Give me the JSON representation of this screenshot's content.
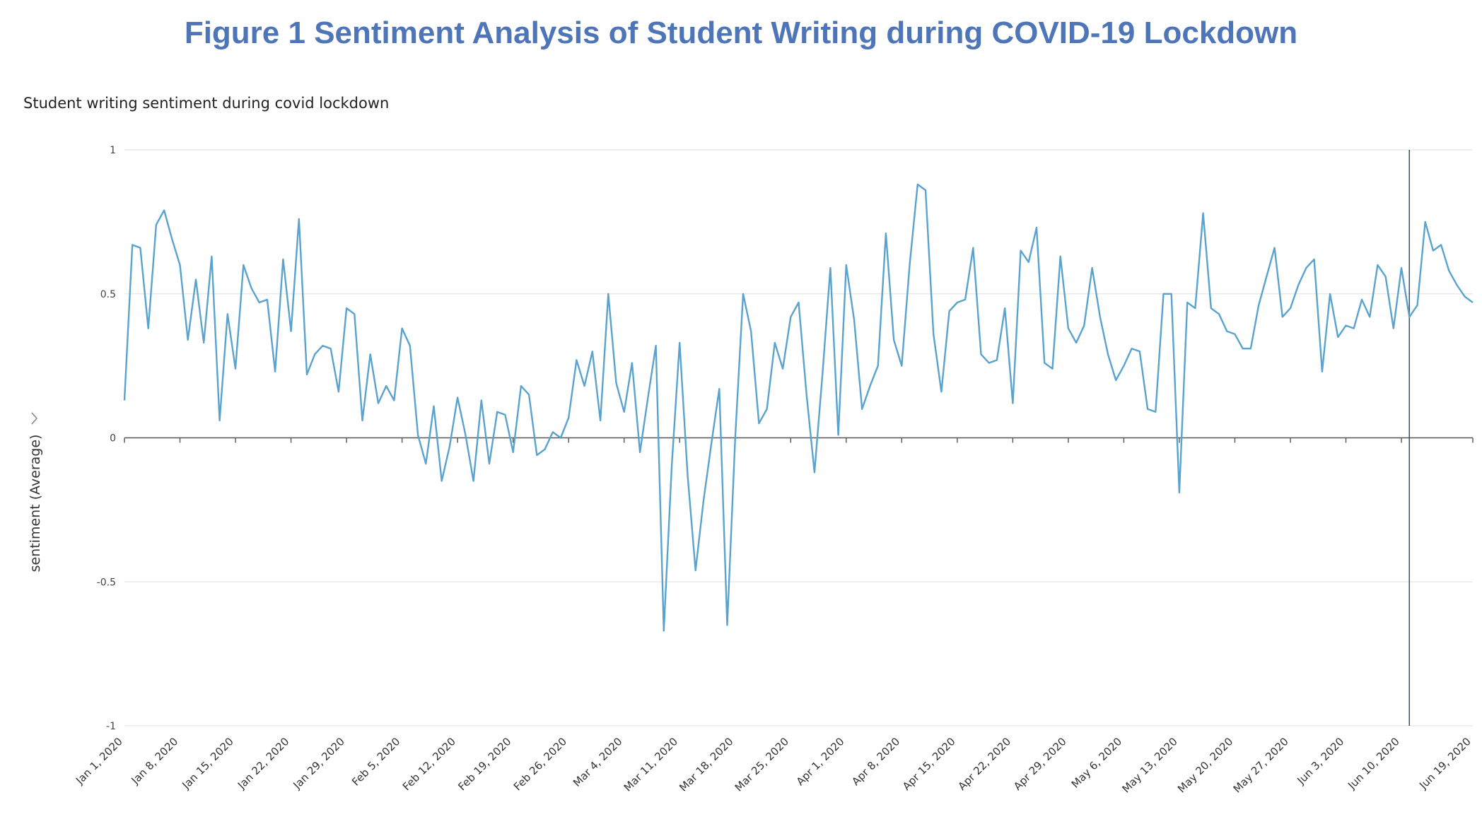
{
  "figure_title": "Figure 1 Sentiment Analysis of Student Writing during COVID-19 Lockdown",
  "chart_data": {
    "type": "line",
    "title": "Student writing sentiment during covid lockdown",
    "xlabel": "",
    "ylabel": "sentiment (Average)",
    "ylim": [
      -1,
      1
    ],
    "yticks": [
      1,
      0.5,
      0,
      -0.5,
      -1
    ],
    "ytick_labels": [
      "1",
      "0.5",
      "0",
      "-0.5",
      "-1"
    ],
    "xlim_days": [
      0,
      170
    ],
    "xtick_labels": [
      "Jan 1, 2020",
      "Jan 8, 2020",
      "Jan 15, 2020",
      "Jan 22, 2020",
      "Jan 29, 2020",
      "Feb 5, 2020",
      "Feb 12, 2020",
      "Feb 19, 2020",
      "Feb 26, 2020",
      "Mar 4, 2020",
      "Mar 11, 2020",
      "Mar 18, 2020",
      "Mar 25, 2020",
      "Apr 1, 2020",
      "Apr 8, 2020",
      "Apr 15, 2020",
      "Apr 22, 2020",
      "Apr 29, 2020",
      "May 6, 2020",
      "May 13, 2020",
      "May 20, 2020",
      "May 27, 2020",
      "Jun 3, 2020",
      "Jun 10, 2020",
      "Jun 19, 2020"
    ],
    "xtick_days": [
      0,
      7,
      14,
      21,
      28,
      35,
      42,
      49,
      56,
      63,
      70,
      77,
      84,
      91,
      98,
      105,
      112,
      119,
      126,
      133,
      140,
      147,
      154,
      161,
      170
    ],
    "line_color": "#5aa3cf",
    "cursor_day": 162,
    "series": [
      {
        "name": "sentiment (Average)",
        "day_start": 0,
        "values": [
          0.13,
          0.67,
          0.66,
          0.38,
          0.74,
          0.79,
          0.69,
          0.6,
          0.34,
          0.55,
          0.33,
          0.63,
          0.06,
          0.43,
          0.24,
          0.6,
          0.52,
          0.47,
          0.48,
          0.23,
          0.62,
          0.37,
          0.76,
          0.22,
          0.29,
          0.32,
          0.31,
          0.16,
          0.45,
          0.43,
          0.06,
          0.29,
          0.12,
          0.18,
          0.13,
          0.38,
          0.32,
          0.01,
          -0.09,
          0.11,
          -0.15,
          -0.03,
          0.14,
          0.01,
          -0.15,
          0.13,
          -0.09,
          0.09,
          0.08,
          -0.05,
          0.18,
          0.15,
          -0.06,
          -0.04,
          0.02,
          0.0,
          0.07,
          0.27,
          0.18,
          0.3,
          0.06,
          0.5,
          0.19,
          0.09,
          0.26,
          -0.05,
          0.14,
          0.32,
          -0.67,
          -0.1,
          0.33,
          -0.13,
          -0.46,
          -0.22,
          -0.02,
          0.17,
          -0.65,
          0.0,
          0.5,
          0.37,
          0.05,
          0.1,
          0.33,
          0.24,
          0.42,
          0.47,
          0.15,
          -0.12,
          0.22,
          0.59,
          0.01,
          0.6,
          0.41,
          0.1,
          0.18,
          0.25,
          0.71,
          0.34,
          0.25,
          0.6,
          0.88,
          0.86,
          0.36,
          0.16,
          0.44,
          0.47,
          0.48,
          0.66,
          0.29,
          0.26,
          0.27,
          0.45,
          0.12,
          0.65,
          0.61,
          0.73,
          0.26,
          0.24,
          0.63,
          0.38,
          0.33,
          0.39,
          0.59,
          0.42,
          0.29,
          0.2,
          0.25,
          0.31,
          0.3,
          0.1,
          0.09,
          0.5,
          0.5,
          -0.19,
          0.47,
          0.45,
          0.78,
          0.45,
          0.43,
          0.37,
          0.36,
          0.31,
          0.31,
          0.46,
          0.56,
          0.66,
          0.42,
          0.45,
          0.53,
          0.59,
          0.62,
          0.23,
          0.5,
          0.35,
          0.39,
          0.38,
          0.48,
          0.42,
          0.6,
          0.56,
          0.38,
          0.59,
          0.42,
          0.46,
          0.75,
          0.65,
          0.67,
          0.58,
          0.53,
          0.49,
          0.47
        ]
      }
    ]
  }
}
